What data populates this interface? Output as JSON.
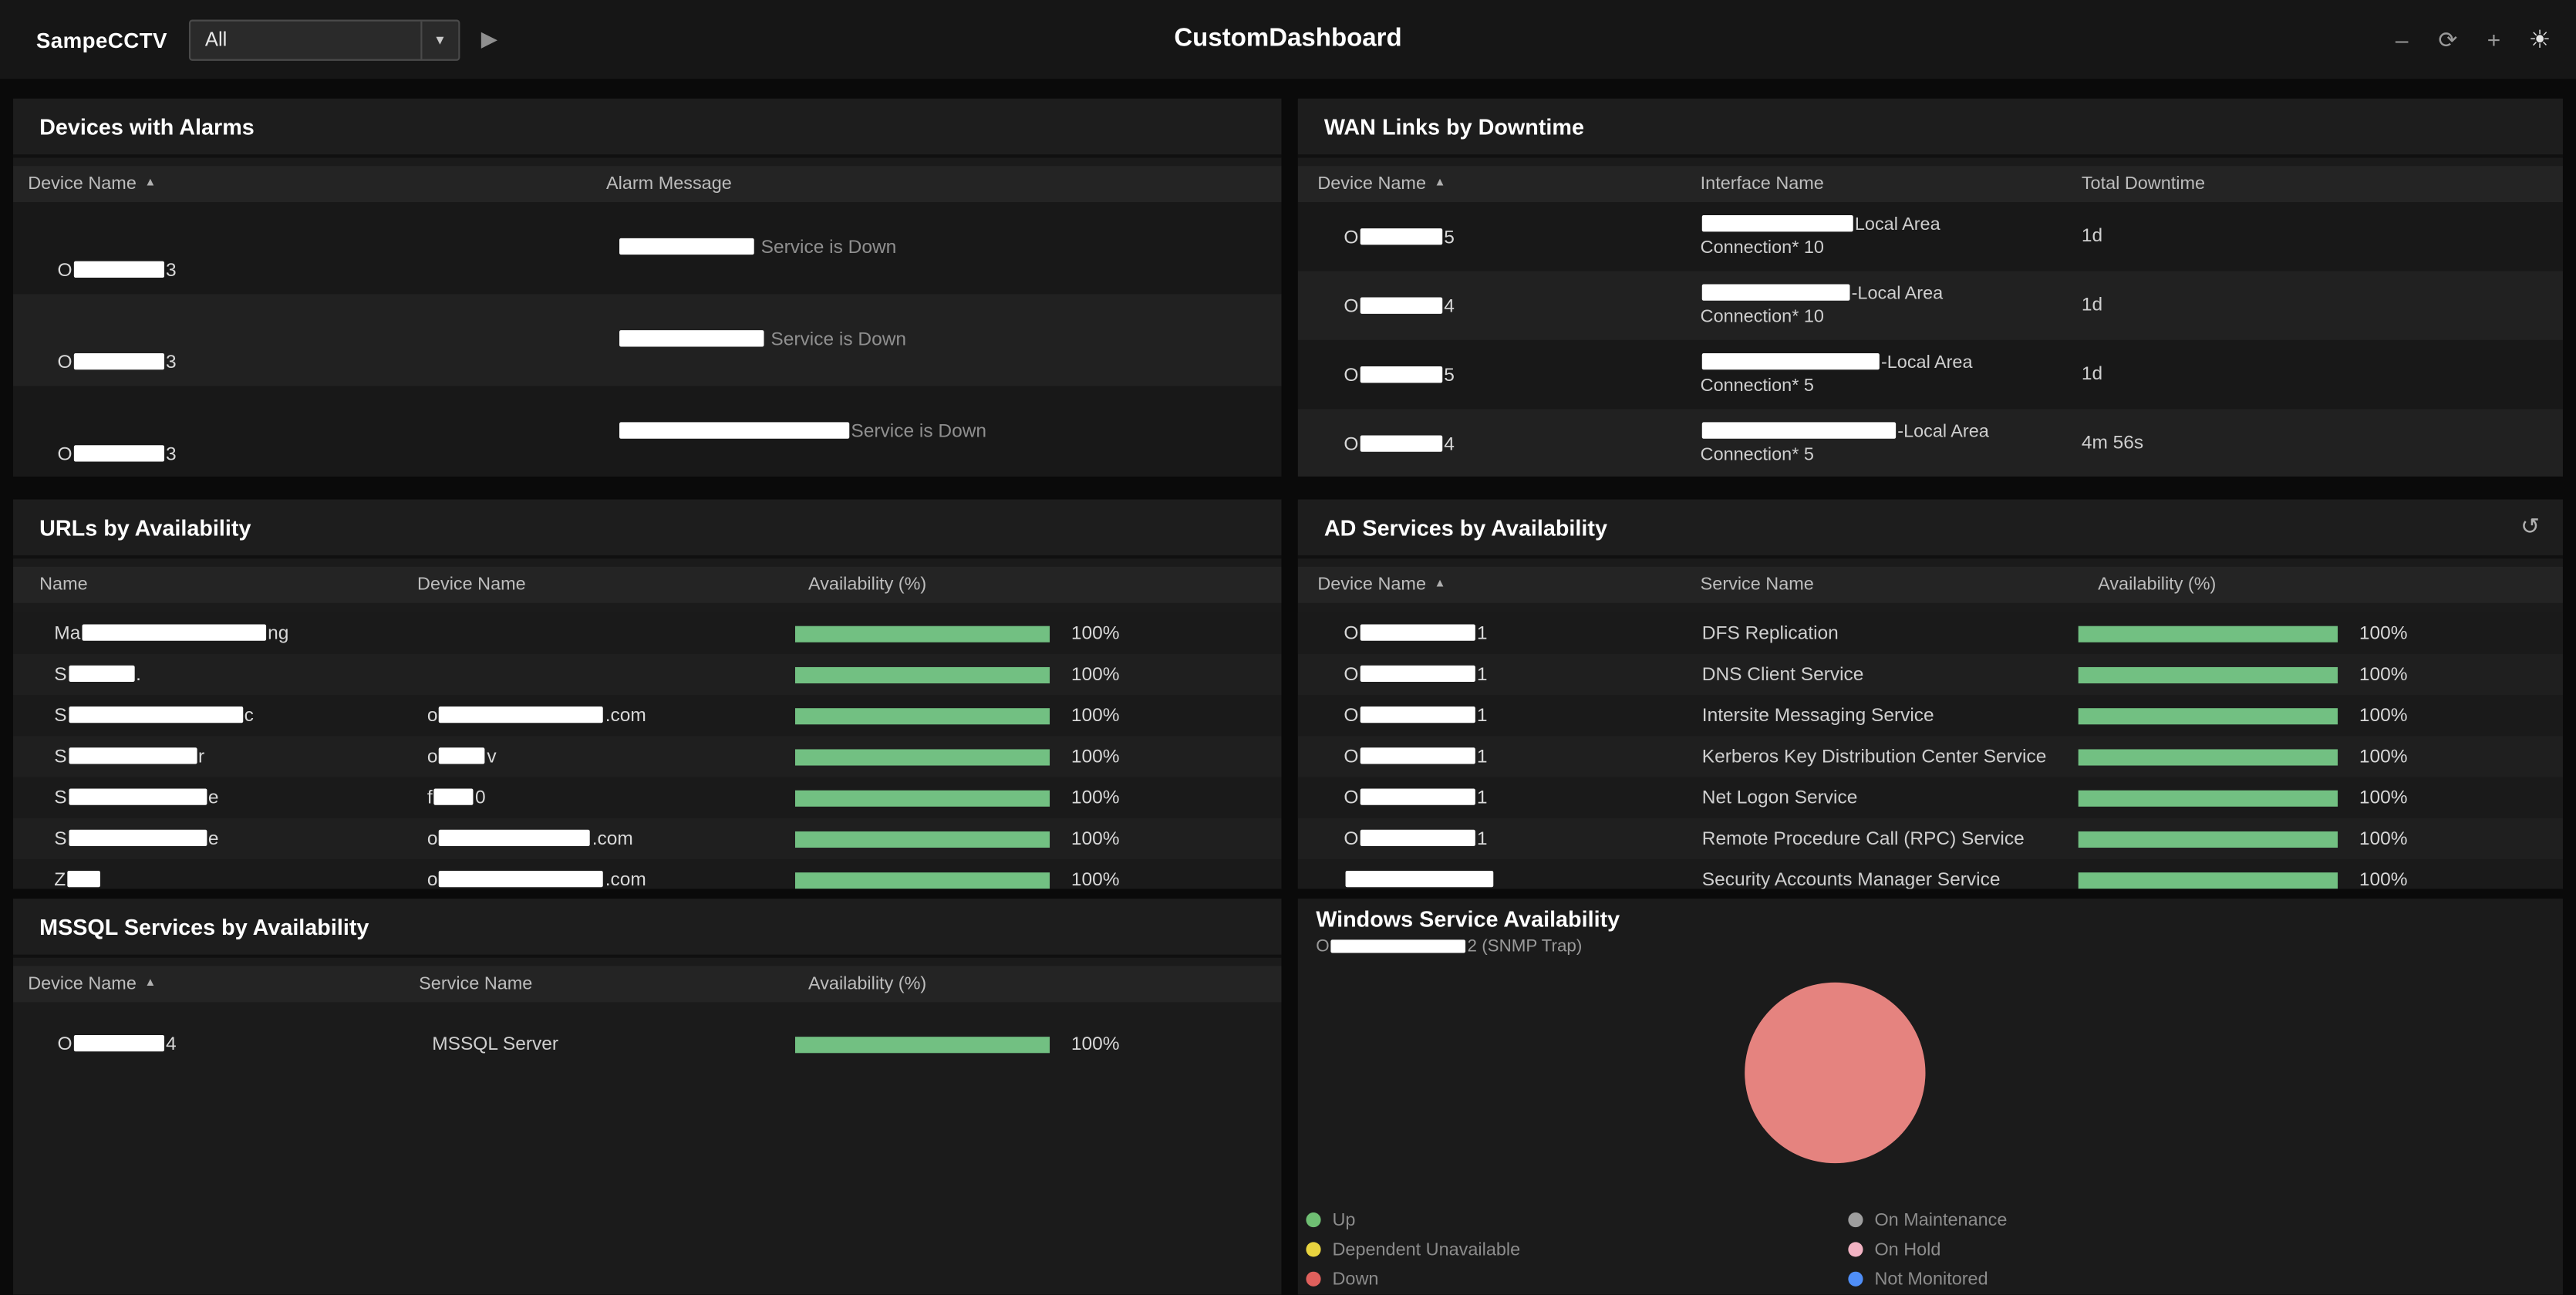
{
  "colors": {
    "availability_bar": "#72c082",
    "redaction": "#ffffff",
    "pie_slice": "#e5837f"
  },
  "topbar": {
    "app_label": "SampeCCTV",
    "scope_select": {
      "value": "All",
      "arrow": "▼"
    },
    "run_icon": "▶",
    "title": "CustomDashboard",
    "actions": {
      "minimize": "–",
      "refresh": "⟳",
      "add": "+",
      "brightness": "☀"
    }
  },
  "panels": {
    "devices_with_alarms": {
      "title": "Devices with Alarms",
      "sort_arrow": "▲",
      "columns": [
        "Device Name",
        "Alarm Message"
      ],
      "rows": [
        {
          "device": [
            {
              "t": "O"
            },
            {
              "r": 55
            },
            {
              "t": "3"
            }
          ],
          "alarm": [
            {
              "r": 82
            },
            {
              "t": " Service is Down"
            }
          ]
        },
        {
          "device": [
            {
              "t": "O"
            },
            {
              "r": 55
            },
            {
              "t": "3"
            }
          ],
          "alarm": [
            {
              "r": 88
            },
            {
              "t": " Service is Down"
            }
          ]
        },
        {
          "device": [
            {
              "t": "O"
            },
            {
              "r": 55
            },
            {
              "t": "3"
            }
          ],
          "alarm": [
            {
              "r": 140
            },
            {
              "t": "Service is Down"
            }
          ]
        }
      ]
    },
    "wan_links_by_downtime": {
      "title": "WAN Links by Downtime",
      "sort_arrow": "▲",
      "columns": [
        "Device Name",
        "Interface Name",
        "Total Downtime"
      ],
      "rows": [
        {
          "device": [
            {
              "t": "O"
            },
            {
              "r": 50
            },
            {
              "t": "5"
            }
          ],
          "interface": [
            {
              "r": 92
            },
            {
              "t": "Local Area Connection* 10"
            }
          ],
          "downtime": "1d"
        },
        {
          "device": [
            {
              "t": "O"
            },
            {
              "r": 50
            },
            {
              "t": "4"
            }
          ],
          "interface": [
            {
              "r": 90
            },
            {
              "t": "-Local Area Connection* 10"
            }
          ],
          "downtime": "1d"
        },
        {
          "device": [
            {
              "t": "O"
            },
            {
              "r": 50
            },
            {
              "t": "5"
            }
          ],
          "interface": [
            {
              "r": 108
            },
            {
              "t": "-Local Area Connection* 5"
            }
          ],
          "downtime": "1d"
        },
        {
          "device": [
            {
              "t": "O"
            },
            {
              "r": 50
            },
            {
              "t": "4"
            }
          ],
          "interface": [
            {
              "r": 118
            },
            {
              "t": "-Local Area Connection* 5"
            }
          ],
          "downtime": "4m 56s"
        }
      ]
    },
    "urls_by_availability": {
      "title": "URLs by Availability",
      "columns": [
        "Name",
        "Device Name",
        "Availability (%)"
      ],
      "rows": [
        {
          "name": [
            {
              "t": "Ma"
            },
            {
              "r": 112
            },
            {
              "t": "ng"
            }
          ],
          "device": [],
          "availability": 100,
          "availability_label": "100%"
        },
        {
          "name": [
            {
              "t": "S"
            },
            {
              "r": 40
            },
            {
              "t": "."
            }
          ],
          "device": [],
          "availability": 100,
          "availability_label": "100%"
        },
        {
          "name": [
            {
              "t": "S"
            },
            {
              "r": 106
            },
            {
              "t": "c"
            }
          ],
          "device": [
            {
              "t": "o"
            },
            {
              "r": 100
            },
            {
              "t": ".com"
            }
          ],
          "availability": 100,
          "availability_label": "100%"
        },
        {
          "name": [
            {
              "t": "S"
            },
            {
              "r": 78
            },
            {
              "t": "r"
            }
          ],
          "device": [
            {
              "t": "o"
            },
            {
              "r": 28
            },
            {
              "t": "v"
            }
          ],
          "availability": 100,
          "availability_label": "100%"
        },
        {
          "name": [
            {
              "t": "S"
            },
            {
              "r": 84
            },
            {
              "t": "e"
            }
          ],
          "device": [
            {
              "t": "f"
            },
            {
              "r": 24
            },
            {
              "t": "0"
            }
          ],
          "availability": 100,
          "availability_label": "100%"
        },
        {
          "name": [
            {
              "t": "S"
            },
            {
              "r": 84
            },
            {
              "t": "e"
            }
          ],
          "device": [
            {
              "t": "o"
            },
            {
              "r": 92
            },
            {
              "t": ".com"
            }
          ],
          "availability": 100,
          "availability_label": "100%"
        },
        {
          "name": [
            {
              "t": "Z"
            },
            {
              "r": 20
            }
          ],
          "device": [
            {
              "t": "o"
            },
            {
              "r": 100
            },
            {
              "t": ".com"
            }
          ],
          "availability": 100,
          "availability_label": "100%"
        }
      ]
    },
    "ad_services_by_availability": {
      "title": "AD Services by Availability",
      "refresh_icon": "↺",
      "sort_arrow": "▲",
      "columns": [
        "Device Name",
        "Service Name",
        "Availability (%)"
      ],
      "rows": [
        {
          "device": [
            {
              "t": "O"
            },
            {
              "r": 70
            },
            {
              "t": "1"
            }
          ],
          "service": "DFS Replication",
          "availability": 100,
          "availability_label": "100%"
        },
        {
          "device": [
            {
              "t": "O"
            },
            {
              "r": 70
            },
            {
              "t": "1"
            }
          ],
          "service": "DNS Client Service",
          "availability": 100,
          "availability_label": "100%"
        },
        {
          "device": [
            {
              "t": "O"
            },
            {
              "r": 70
            },
            {
              "t": "1"
            }
          ],
          "service": "Intersite Messaging Service",
          "availability": 100,
          "availability_label": "100%"
        },
        {
          "device": [
            {
              "t": "O"
            },
            {
              "r": 70
            },
            {
              "t": "1"
            }
          ],
          "service": "Kerberos Key Distribution Center Service",
          "availability": 100,
          "availability_label": "100%"
        },
        {
          "device": [
            {
              "t": "O"
            },
            {
              "r": 70
            },
            {
              "t": "1"
            }
          ],
          "service": "Net Logon Service",
          "availability": 100,
          "availability_label": "100%"
        },
        {
          "device": [
            {
              "t": "O"
            },
            {
              "r": 70
            },
            {
              "t": "1"
            }
          ],
          "service": "Remote Procedure Call (RPC) Service",
          "availability": 100,
          "availability_label": "100%"
        },
        {
          "device": [
            {
              "r": 90
            }
          ],
          "service": "Security Accounts Manager Service",
          "availability": 100,
          "availability_label": "100%"
        }
      ]
    },
    "mssql_services_by_availability": {
      "title": "MSSQL Services by Availability",
      "sort_arrow": "▲",
      "columns": [
        "Device Name",
        "Service Name",
        "Availability (%)"
      ],
      "rows": [
        {
          "device": [
            {
              "t": "O"
            },
            {
              "r": 55
            },
            {
              "t": "4"
            }
          ],
          "service": "MSSQL Server",
          "availability": 100,
          "availability_label": "100%"
        }
      ]
    },
    "windows_service_availability": {
      "title": "Windows Service Availability",
      "subtitle": [
        {
          "t": "O"
        },
        {
          "r": 82
        },
        {
          "t": "2 (SNMP Trap)"
        }
      ],
      "legend": [
        {
          "label": "Up",
          "color": "#6fbf73"
        },
        {
          "label": "Dependent Unavailable",
          "color": "#e8d33f"
        },
        {
          "label": "Down",
          "color": "#e0605c"
        },
        {
          "label": "On Maintenance",
          "color": "#9e9e9e"
        },
        {
          "label": "On Hold",
          "color": "#f2b3c3"
        },
        {
          "label": "Not Monitored",
          "color": "#4f8ef7"
        }
      ]
    }
  },
  "chart_data": {
    "type": "pie",
    "title": "Windows Service Availability",
    "slices": [
      {
        "label": "Down",
        "value": 100,
        "color": "#e5837f"
      }
    ],
    "legend_position": "bottom",
    "legend": [
      "Up",
      "Dependent Unavailable",
      "Down",
      "On Maintenance",
      "On Hold",
      "Not Monitored"
    ]
  }
}
